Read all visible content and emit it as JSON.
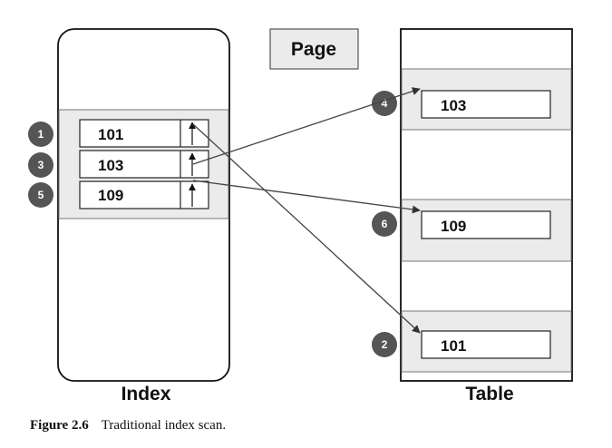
{
  "diagram": {
    "page_label": "Page",
    "index_label": "Index",
    "table_label": "Table",
    "index_entries": [
      {
        "value": "101",
        "step": "1"
      },
      {
        "value": "103",
        "step": "3"
      },
      {
        "value": "109",
        "step": "5"
      }
    ],
    "table_rows": [
      {
        "value": "103",
        "step": "4"
      },
      {
        "value": "109",
        "step": "6"
      },
      {
        "value": "101",
        "step": "2"
      }
    ]
  },
  "caption": {
    "number": "Figure 2.6",
    "text": "Traditional index scan."
  }
}
